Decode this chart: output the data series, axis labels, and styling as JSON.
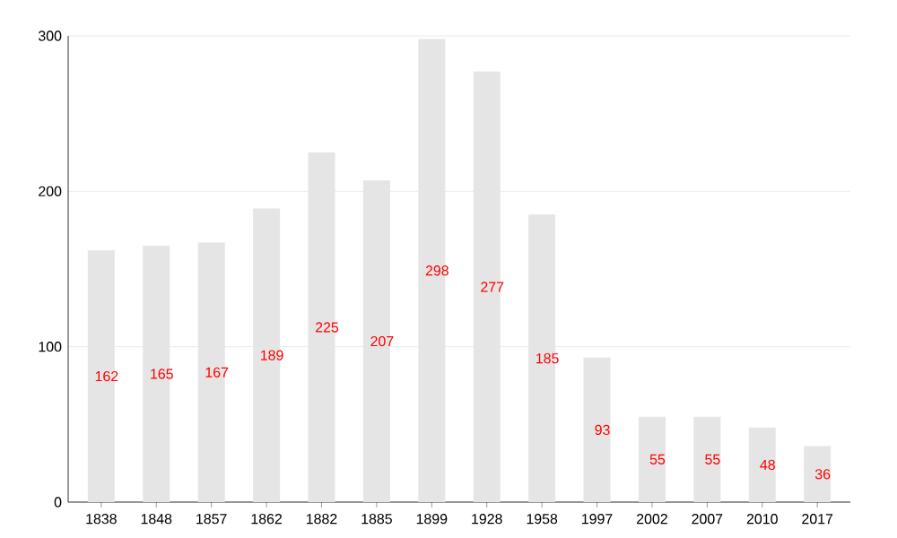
{
  "chart_data": {
    "type": "bar",
    "categories": [
      "1838",
      "1848",
      "1857",
      "1862",
      "1882",
      "1885",
      "1899",
      "1928",
      "1958",
      "1997",
      "2002",
      "2007",
      "2010",
      "2017"
    ],
    "values": [
      162,
      165,
      167,
      189,
      225,
      207,
      298,
      277,
      185,
      93,
      55,
      55,
      48,
      36
    ],
    "color": "#e5e5e5",
    "ylim": [
      0,
      300
    ],
    "yticks": [
      0,
      100,
      200,
      300
    ],
    "grid": "y",
    "data_labels": true
  }
}
